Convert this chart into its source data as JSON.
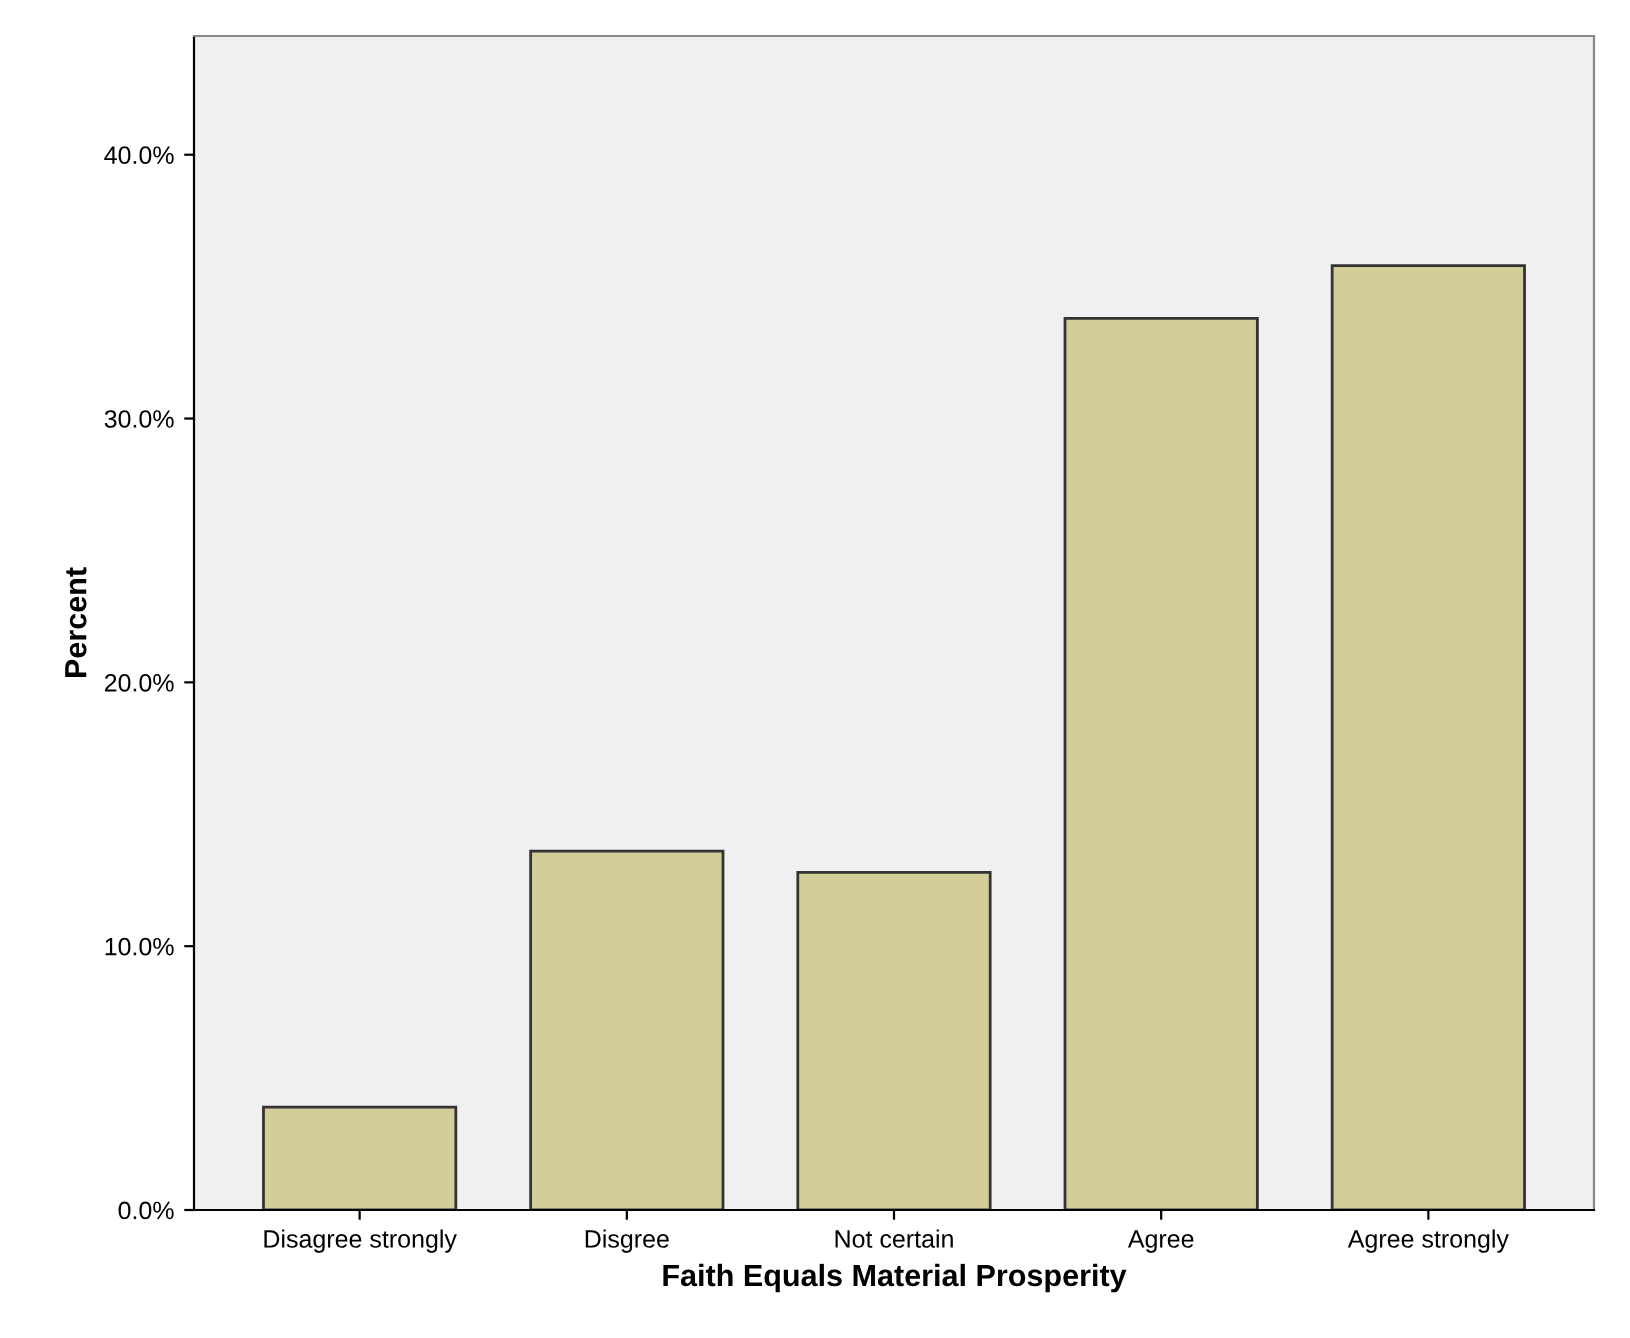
{
  "chart_data": {
    "type": "bar",
    "xlabel": "Faith Equals Material Prosperity",
    "ylabel": "Percent",
    "categories": [
      "Disagree strongly",
      "Disgree",
      "Not certain",
      "Agree",
      "Agree strongly"
    ],
    "values": [
      3.9,
      13.6,
      12.8,
      33.8,
      35.8
    ],
    "color": "#d3ce97",
    "ylim": [
      0,
      44.5
    ],
    "yticks": [
      {
        "value": 0,
        "label": "0.0%"
      },
      {
        "value": 10,
        "label": "10.0%"
      },
      {
        "value": 20,
        "label": "20.0%"
      },
      {
        "value": 30,
        "label": "30.0%"
      },
      {
        "value": 40,
        "label": "40.0%"
      }
    ],
    "grid": false
  }
}
